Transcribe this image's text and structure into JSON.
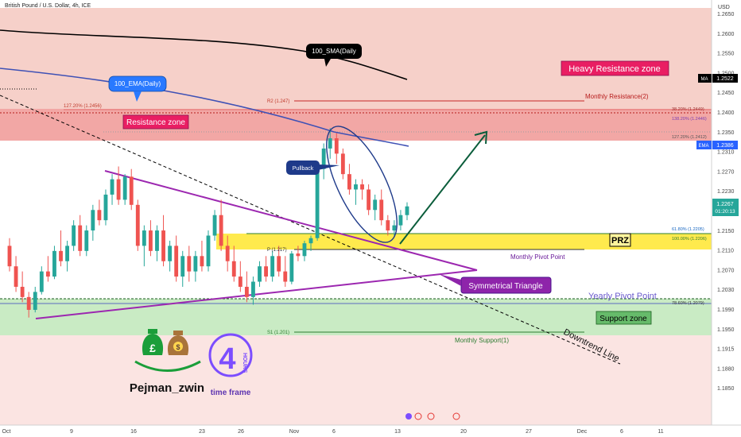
{
  "header": {
    "title": "British Pound / U.S. Dollar, 4h, ICE"
  },
  "price_axis": {
    "currency": "USD",
    "ticks": [
      "1.2650",
      "1.2600",
      "1.2550",
      "1.2500",
      "1.2450",
      "1.2400",
      "1.2350",
      "1.2310",
      "1.2270",
      "1.2230",
      "1.2190",
      "1.2150",
      "1.2110",
      "1.2070",
      "1.2030",
      "1.1990",
      "1.1950",
      "1.1915",
      "1.1880",
      "1.1850"
    ],
    "ma_label": "MA",
    "ma_value": "1.2522",
    "ema_label": "EMA",
    "ema_value": "1.2386",
    "last_price": "1.2267",
    "countdown": "01:20:13"
  },
  "time_axis": {
    "labels": [
      "Oct",
      "9",
      "16",
      "23",
      "26",
      "Nov",
      "6",
      "13",
      "20",
      "27",
      "Dec",
      "6",
      "11"
    ]
  },
  "annotations": {
    "sma_callout": "100_SMA(Daily",
    "ema_callout": "100_EMA(Daily)",
    "heavy_resistance": "Heavy Resistance zone",
    "resistance_zone": "Resistance zone",
    "pullback": "Pullback",
    "prz": "PRZ",
    "symmetrical_triangle": "Symmetrical Triangle",
    "yearly_pivot": "Yearly Pivot Point",
    "support_zone": "Support zone",
    "downtrend_line": "Downtrend Line",
    "monthly_resistance": "Monthly Resistance(2)",
    "monthly_pivot": "Monthly Pivot Point",
    "monthly_support": "Monthly Support(1)",
    "fib_left": "127.20% (1.2456)",
    "r2": "R2 (1.247)",
    "fib_382": "38.20% (1.2449)",
    "fib_1382": "138.20% (1.2446)",
    "fib_1272": "127.20% (1.2412)",
    "fib_618": "61.80% (1.2205)",
    "fib_100": "100.00% (1.2206)",
    "pivot_p": "P (1.217)",
    "fib_786": "78.60% (1.2079)",
    "s1": "S1 (1.201)"
  },
  "logo": {
    "author": "Pejman_zwin",
    "caption": "time frame",
    "hours_number": "4",
    "hours_word": "HOURS"
  },
  "colors": {
    "bull": "#26a69a",
    "bear": "#ef5350",
    "triangle": "#9c27b0",
    "ema": "#3f51b5",
    "sma": "#000000",
    "prz": "#ffeb3b",
    "heavy_zone": "#f4c7c3",
    "support": "#c8e6c9"
  },
  "chart_data": {
    "type": "candlestick",
    "symbol": "GBPUSD",
    "timeframe": "4h",
    "ylim": [
      1.184,
      1.267
    ],
    "candles": [
      [
        1.219,
        1.2205,
        1.214,
        1.215
      ],
      [
        1.215,
        1.217,
        1.21,
        1.211
      ],
      [
        1.211,
        1.214,
        1.208,
        1.209
      ],
      [
        1.209,
        1.21,
        1.205,
        1.2065
      ],
      [
        1.2065,
        1.211,
        1.206,
        1.21
      ],
      [
        1.21,
        1.215,
        1.2095,
        1.214
      ],
      [
        1.214,
        1.217,
        1.212,
        1.213
      ],
      [
        1.213,
        1.219,
        1.2125,
        1.218
      ],
      [
        1.218,
        1.222,
        1.215,
        1.216
      ],
      [
        1.216,
        1.22,
        1.214,
        1.219
      ],
      [
        1.219,
        1.224,
        1.218,
        1.223
      ],
      [
        1.223,
        1.225,
        1.217,
        1.218
      ],
      [
        1.218,
        1.223,
        1.217,
        1.222
      ],
      [
        1.222,
        1.227,
        1.22,
        1.226
      ],
      [
        1.226,
        1.228,
        1.223,
        1.224
      ],
      [
        1.224,
        1.23,
        1.223,
        1.229
      ],
      [
        1.229,
        1.233,
        1.227,
        1.232
      ],
      [
        1.232,
        1.2345,
        1.227,
        1.228
      ],
      [
        1.228,
        1.233,
        1.227,
        1.2325
      ],
      [
        1.2325,
        1.234,
        1.226,
        1.227
      ],
      [
        1.227,
        1.228,
        1.218,
        1.219
      ],
      [
        1.219,
        1.223,
        1.215,
        1.222
      ],
      [
        1.222,
        1.224,
        1.217,
        1.218
      ],
      [
        1.218,
        1.223,
        1.216,
        1.222
      ],
      [
        1.222,
        1.225,
        1.215,
        1.216
      ],
      [
        1.216,
        1.22,
        1.214,
        1.219
      ],
      [
        1.219,
        1.221,
        1.212,
        1.213
      ],
      [
        1.213,
        1.218,
        1.211,
        1.217
      ],
      [
        1.217,
        1.219,
        1.212,
        1.214
      ],
      [
        1.214,
        1.218,
        1.212,
        1.217
      ],
      [
        1.217,
        1.22,
        1.214,
        1.215
      ],
      [
        1.215,
        1.222,
        1.214,
        1.221
      ],
      [
        1.221,
        1.226,
        1.22,
        1.225
      ],
      [
        1.225,
        1.228,
        1.218,
        1.219
      ],
      [
        1.219,
        1.221,
        1.214,
        1.216
      ],
      [
        1.216,
        1.219,
        1.212,
        1.213
      ],
      [
        1.213,
        1.216,
        1.21,
        1.211
      ],
      [
        1.211,
        1.214,
        1.208,
        1.209
      ],
      [
        1.209,
        1.213,
        1.2075,
        1.212
      ],
      [
        1.212,
        1.216,
        1.211,
        1.215
      ],
      [
        1.215,
        1.217,
        1.212,
        1.213
      ],
      [
        1.213,
        1.218,
        1.212,
        1.217
      ],
      [
        1.217,
        1.219,
        1.213,
        1.214
      ],
      [
        1.214,
        1.217,
        1.211,
        1.212
      ],
      [
        1.212,
        1.218,
        1.2115,
        1.2175
      ],
      [
        1.2175,
        1.219,
        1.216,
        1.217
      ],
      [
        1.217,
        1.22,
        1.216,
        1.2195
      ],
      [
        1.2195,
        1.221,
        1.218,
        1.2205
      ],
      [
        1.2205,
        1.235,
        1.22,
        1.234
      ],
      [
        1.234,
        1.239,
        1.232,
        1.238
      ],
      [
        1.238,
        1.242,
        1.236,
        1.24
      ],
      [
        1.24,
        1.241,
        1.235,
        1.237
      ],
      [
        1.237,
        1.238,
        1.232,
        1.233
      ],
      [
        1.233,
        1.235,
        1.229,
        1.23
      ],
      [
        1.23,
        1.232,
        1.227,
        1.231
      ],
      [
        1.231,
        1.232,
        1.228,
        1.23
      ],
      [
        1.23,
        1.231,
        1.225,
        1.226
      ],
      [
        1.226,
        1.229,
        1.224,
        1.228
      ],
      [
        1.228,
        1.23,
        1.223,
        1.224
      ],
      [
        1.224,
        1.225,
        1.221,
        1.222
      ],
      [
        1.222,
        1.224,
        1.221,
        1.223
      ],
      [
        1.223,
        1.226,
        1.222,
        1.225
      ],
      [
        1.225,
        1.2275,
        1.224,
        1.2267
      ]
    ],
    "moving_averages": [
      {
        "name": "MA",
        "last": 1.2522
      },
      {
        "name": "EMA",
        "last": 1.2386
      }
    ],
    "levels": [
      {
        "name": "Monthly Resistance(2)",
        "value": 1.247
      },
      {
        "name": "Monthly Pivot Point",
        "value": 1.217
      },
      {
        "name": "Monthly Support(1)",
        "value": 1.201
      }
    ]
  }
}
